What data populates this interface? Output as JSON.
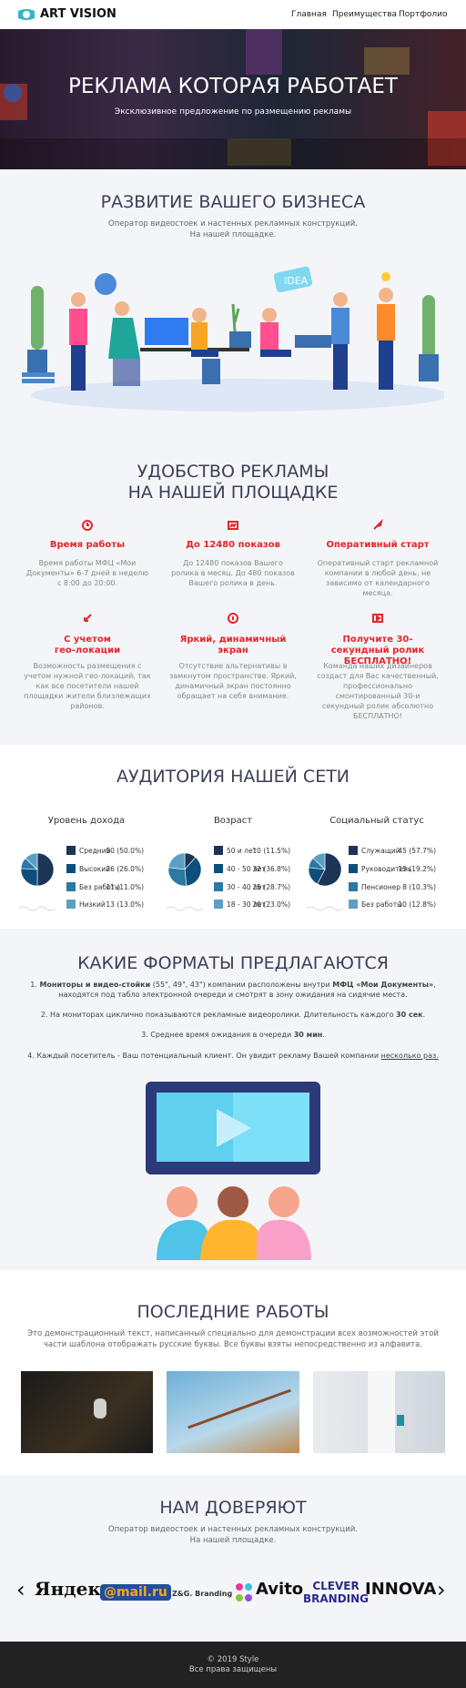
{
  "nav": {
    "brand": "ART VISION",
    "links": [
      "Главная",
      "Преимущества",
      "Портфолио"
    ]
  },
  "hero": {
    "title": "РЕКЛАМА КОТОРАЯ РАБОТАЕТ",
    "subtitle": "Эксклюзивное предложение по размещению рекламы"
  },
  "business": {
    "title": "РАЗВИТИЕ ВАШЕГО БИЗНЕСА",
    "text": "Оператор видеостоек и настенных рекламных конструкций.\nНа нашей площадке.",
    "illustration_label": "IDEA"
  },
  "benefits": {
    "title": "УДОБСТВО РЕКЛАМЫ\nНА НАШЕЙ ПЛОЩАДКЕ",
    "items": [
      {
        "title": "Время работы",
        "text": "Время работы МФЦ «Мои Документы» 6-7 дней в неделю с 8:00 до 20:00."
      },
      {
        "title": "До 12480 показов",
        "text": "До 12480 показов Вашего ролика в месяц. До 480 показов Вашего ролика в день."
      },
      {
        "title": "Оперативный старт",
        "text": "Оперативный старт рекламной компании в любой день, не зависимо от календарного месяца."
      },
      {
        "title": "С учетом\nгео-локации",
        "text": "Возможность размещения с учетом нужной гео-локаций, так как все посетители нашей площадки жители близлежащих районов."
      },
      {
        "title": "Яркий, динамичный\nэкран",
        "text": "Отсутствие альтернативы в замкнутом пространстве. Яркий, динамичный экран постоянно обращает на себя внимание."
      },
      {
        "title": "Получите 30-секундный ролик\nБЕСПЛАТНО!",
        "text": "Команда наших дизайнеров создаст для Вас качественный, профессионально смонтированный 30-и секундный ролик абсолютно БЕСПЛАТНО!"
      }
    ]
  },
  "audience": {
    "title": "АУДИТОРИЯ НАШЕЙ СЕТИ",
    "charts": [
      {
        "title": "Уровень дохода",
        "items": [
          {
            "name": "Средний",
            "value": 50,
            "label": "50 (50.0%)",
            "color": "#1c3557"
          },
          {
            "name": "Высокий",
            "value": 26,
            "label": "26 (26.0%)",
            "color": "#0d4f7c"
          },
          {
            "name": "Без работы",
            "value": 11,
            "label": "11 (11.0%)",
            "color": "#2a7aa3"
          },
          {
            "name": "Низкий",
            "value": 13,
            "label": "13 (13.0%)",
            "color": "#5d9fc2"
          }
        ]
      },
      {
        "title": "Возраст",
        "items": [
          {
            "name": "50 и лет",
            "value": 10,
            "label": "10 (11.5%)",
            "color": "#1c3557"
          },
          {
            "name": "40 - 50 лет",
            "value": 32,
            "label": "32 (36.8%)",
            "color": "#0d4f7c"
          },
          {
            "name": "30 - 40 лет",
            "value": 25,
            "label": "25 (28.7%)",
            "color": "#2a7aa3"
          },
          {
            "name": "18 - 30 лет",
            "value": 20,
            "label": "20 (23.0%)",
            "color": "#5d9fc2"
          }
        ]
      },
      {
        "title": "Социальный статус",
        "items": [
          {
            "name": "Служащий",
            "value": 45,
            "label": "45 (57.7%)",
            "color": "#1c3557"
          },
          {
            "name": "Руководитель",
            "value": 15,
            "label": "15 (19.2%)",
            "color": "#0d4f7c"
          },
          {
            "name": "Пенсионер",
            "value": 8,
            "label": "8 (10.3%)",
            "color": "#2a7aa3"
          },
          {
            "name": "Без работы",
            "value": 10,
            "label": "10 (12.8%)",
            "color": "#5d9fc2"
          }
        ]
      }
    ]
  },
  "formats": {
    "title": "КАКИЕ ФОРМАТЫ ПРЕДЛАГАЮТСЯ",
    "items": [
      [
        {
          "text": "1. "
        },
        {
          "text": "Мониторы и видео-стойки",
          "style": "bold"
        },
        {
          "text": " (55\", 49\", 43\") компании расположены внутри "
        },
        {
          "text": "МФЦ «Мои Документы»",
          "style": "bold"
        },
        {
          "text": ", находятся под табло электронной очереди и смотрят в зону ожидания на сидячие места."
        }
      ],
      [
        {
          "text": "2. На мониторах циклично показываются рекламные видеоролики. Длительность каждого "
        },
        {
          "text": "30 сек",
          "style": "bold"
        },
        {
          "text": "."
        }
      ],
      [
        {
          "text": "3. Среднее время ожидания в очереди "
        },
        {
          "text": "30 мин",
          "style": "bold"
        },
        {
          "text": "."
        }
      ],
      [
        {
          "text": "4. Каждый посетитель - Ваш потенциальный клиент. Он увидит рекламу Вашей компании "
        },
        {
          "text": "несколько раз.",
          "style": "underline"
        }
      ]
    ]
  },
  "works": {
    "title": "ПОСЛЕДНИЕ РАБОТЫ",
    "text": "Это демонстрационный текст, написанный специально для демонстрации всех возможностей этой части шаблона отображать русские буквы. Все буквы взяты непосредственно из алфавита."
  },
  "partners": {
    "title": "НАМ ДОВЕРЯЮТ",
    "text": "Оператор видеостоек и настенных рекламных конструкций.\nНа нашей площадке.",
    "logos": [
      "Яндекс",
      "@mail.ru",
      "Z&G. Branding",
      "Avito",
      "CLEVER\nBRANDING",
      "INNOVA"
    ]
  },
  "footer": {
    "copyright": "© 2019 Style",
    "rights": "Все права защищены"
  }
}
